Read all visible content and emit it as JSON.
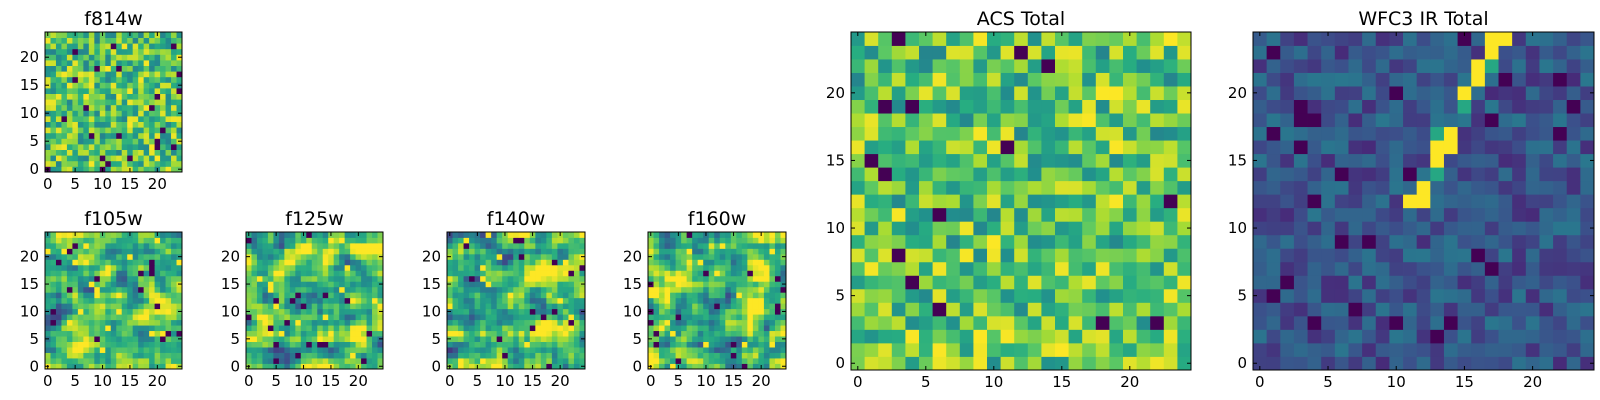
{
  "chart_data": [
    {
      "type": "heatmap",
      "title": "f814w",
      "grid_size": 25,
      "xlim": [
        -0.5,
        24.5
      ],
      "ylim": [
        -0.5,
        24.5
      ],
      "xticks": [
        0,
        5,
        10,
        15,
        20
      ],
      "yticks": [
        0,
        5,
        10,
        15,
        20
      ],
      "colormap": "viridis",
      "pattern": "noise",
      "seed": 814
    },
    {
      "type": "heatmap",
      "title": "f105w",
      "grid_size": 25,
      "xlim": [
        -0.5,
        24.5
      ],
      "ylim": [
        -0.5,
        24.5
      ],
      "xticks": [
        0,
        5,
        10,
        15,
        20
      ],
      "yticks": [
        0,
        5,
        10,
        15,
        20
      ],
      "colormap": "viridis",
      "pattern": "smooth",
      "seed": 105
    },
    {
      "type": "heatmap",
      "title": "f125w",
      "grid_size": 25,
      "xlim": [
        -0.5,
        24.5
      ],
      "ylim": [
        -0.5,
        24.5
      ],
      "xticks": [
        0,
        5,
        10,
        15,
        20
      ],
      "yticks": [
        0,
        5,
        10,
        15,
        20
      ],
      "colormap": "viridis",
      "pattern": "smooth",
      "seed": 125
    },
    {
      "type": "heatmap",
      "title": "f140w",
      "grid_size": 25,
      "xlim": [
        -0.5,
        24.5
      ],
      "ylim": [
        -0.5,
        24.5
      ],
      "xticks": [
        0,
        5,
        10,
        15,
        20
      ],
      "yticks": [
        0,
        5,
        10,
        15,
        20
      ],
      "colormap": "viridis",
      "pattern": "smooth",
      "seed": 140
    },
    {
      "type": "heatmap",
      "title": "f160w",
      "grid_size": 25,
      "xlim": [
        -0.5,
        24.5
      ],
      "ylim": [
        -0.5,
        24.5
      ],
      "xticks": [
        0,
        5,
        10,
        15,
        20
      ],
      "yticks": [
        0,
        5,
        10,
        15,
        20
      ],
      "colormap": "viridis",
      "pattern": "smooth",
      "seed": 160
    },
    {
      "type": "heatmap",
      "title": "ACS Total",
      "grid_size": 25,
      "xlim": [
        -0.5,
        24.5
      ],
      "ylim": [
        -0.5,
        24.5
      ],
      "xticks": [
        0,
        5,
        10,
        15,
        20
      ],
      "yticks": [
        0,
        5,
        10,
        15,
        20
      ],
      "colormap": "viridis",
      "pattern": "noise",
      "seed": 999
    },
    {
      "type": "heatmap",
      "title": "WFC3 IR Total",
      "grid_size": 25,
      "xlim": [
        -0.5,
        24.5
      ],
      "ylim": [
        -0.5,
        24.5
      ],
      "xticks": [
        0,
        5,
        10,
        15,
        20
      ],
      "yticks": [
        0,
        5,
        10,
        15,
        20
      ],
      "colormap": "viridis",
      "pattern": "dark_with_streak",
      "seed": 77
    }
  ]
}
